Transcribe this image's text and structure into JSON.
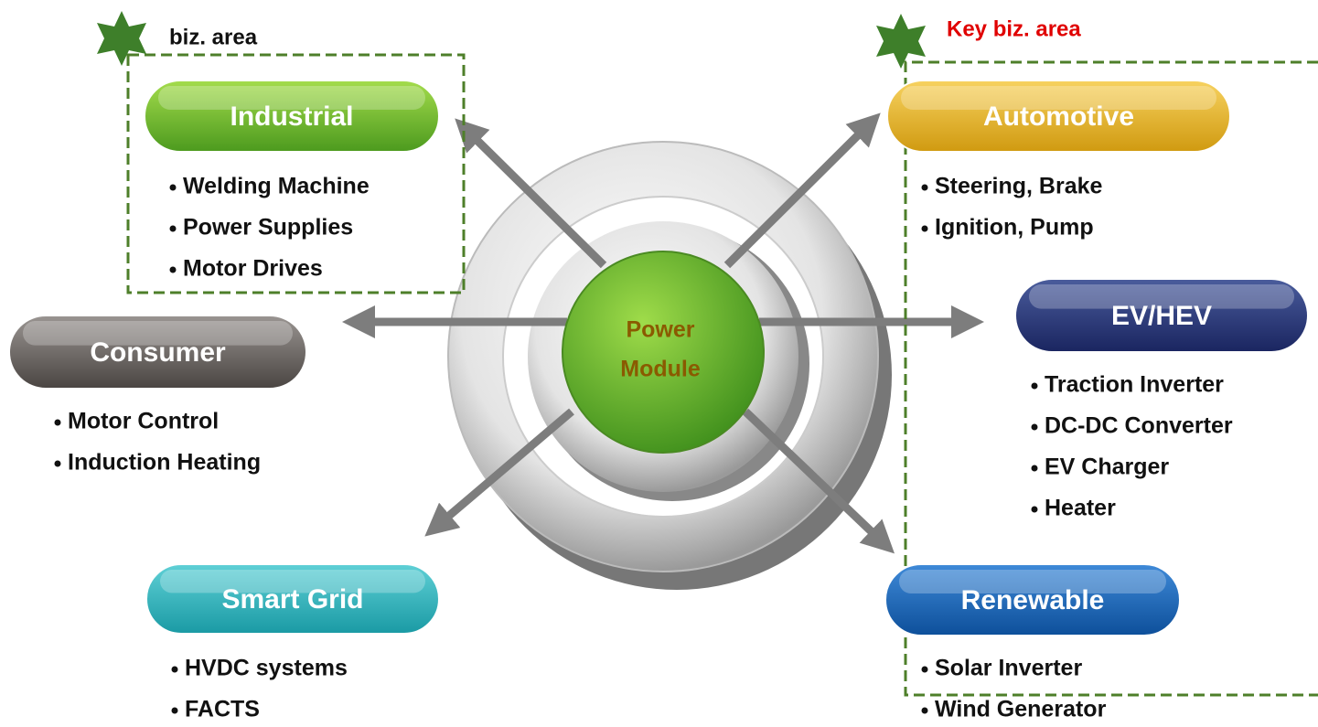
{
  "areas": [
    {
      "label": "biz. area"
    },
    {
      "label": "Key biz. area"
    }
  ],
  "center": {
    "lines": [
      "Power",
      "Module"
    ]
  },
  "nodes": [
    {
      "label": "Industrial",
      "items": [
        "Welding Machine",
        "Power Supplies",
        "Motor Drives"
      ]
    },
    {
      "label": "Consumer",
      "items": [
        "Motor Control",
        "Induction Heating"
      ]
    },
    {
      "label": "Smart Grid",
      "items": [
        "HVDC systems",
        "FACTS"
      ]
    },
    {
      "label": "Automotive",
      "items": [
        "Steering, Brake",
        "Ignition, Pump"
      ]
    },
    {
      "label": "EV/HEV",
      "items": [
        "Traction Inverter",
        "DC-DC Converter",
        "EV Charger",
        "Heater"
      ]
    },
    {
      "label": "Renewable",
      "items": [
        "Solar Inverter",
        "Wind Generator"
      ]
    }
  ]
}
